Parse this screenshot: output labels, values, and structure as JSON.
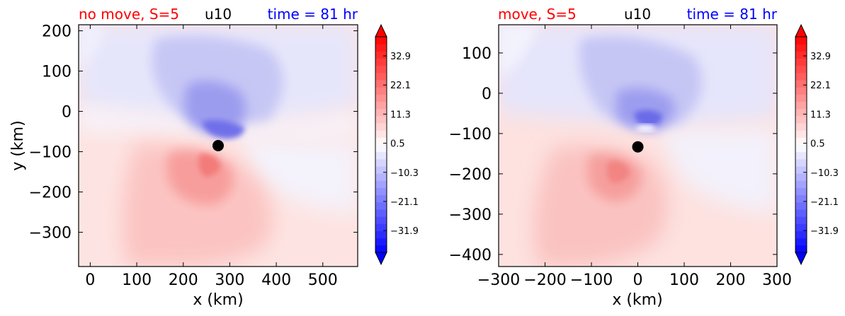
{
  "colors": {
    "red_title": "#ff0000",
    "blue_title": "#0000ff",
    "text": "#000000"
  },
  "colorbar": {
    "ticks": [
      "32.9",
      "22.1",
      "11.3",
      "0.5",
      "−10.3",
      "−21.1",
      "−31.9"
    ],
    "tick_values": [
      32.9,
      22.1,
      11.3,
      0.5,
      -10.3,
      -21.1,
      -31.9
    ],
    "range": [
      -40,
      40
    ],
    "extend": "both",
    "colormap": "bwr"
  },
  "chart_data": [
    {
      "type": "heatmap",
      "field": "u10",
      "title_left": "no move, S=5",
      "title_center": "u10",
      "title_right": "time = 81 hr",
      "xlabel": "x (km)",
      "ylabel": "y (km)",
      "xlim": [
        -25,
        575
      ],
      "ylim": [
        -385,
        215
      ],
      "xticks": [
        0,
        100,
        200,
        300,
        400,
        500
      ],
      "xtick_labels": [
        "0",
        "100",
        "200",
        "300",
        "400",
        "500"
      ],
      "yticks": [
        200,
        100,
        0,
        -100,
        -200,
        -300
      ],
      "ytick_labels": [
        "200",
        "100",
        "0",
        "−100",
        "−200",
        "−300"
      ],
      "center_marker": {
        "x": 275,
        "y": -85
      },
      "features": {
        "neg_core": {
          "x": 285,
          "y": -45,
          "value": -28
        },
        "pos_core": {
          "x": 265,
          "y": -130,
          "value": 26
        }
      }
    },
    {
      "type": "heatmap",
      "field": "u10",
      "title_left": "move, S=5",
      "title_center": "u10",
      "title_right": "time = 81 hr",
      "xlabel": "x (km)",
      "ylabel": "",
      "xlim": [
        -300,
        300
      ],
      "ylim": [
        -430,
        170
      ],
      "xticks": [
        -300,
        -200,
        -100,
        0,
        100,
        200,
        300
      ],
      "xtick_labels": [
        "−300",
        "−200",
        "−100",
        "0",
        "100",
        "200",
        "300"
      ],
      "yticks": [
        100,
        0,
        -100,
        -200,
        -300,
        -400
      ],
      "ytick_labels": [
        "100",
        "0",
        "−100",
        "−200",
        "−300",
        "−400"
      ],
      "center_marker": {
        "x": 0,
        "y": -133
      },
      "features": {
        "neg_core": {
          "x": 15,
          "y": -60,
          "value": -28
        },
        "pos_core": {
          "x": -25,
          "y": -205,
          "value": 24
        }
      }
    }
  ]
}
